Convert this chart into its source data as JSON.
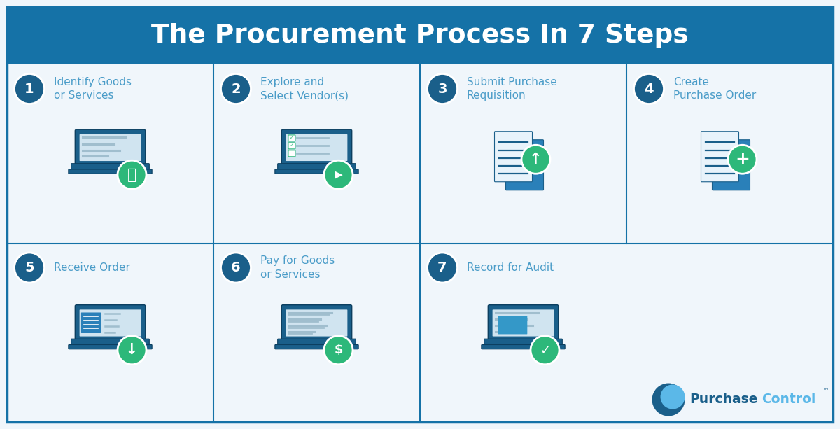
{
  "title": "The Procurement Process In 7 Steps",
  "title_bg_color": "#1572a7",
  "title_text_color": "#ffffff",
  "bg_color": "#f0f6fb",
  "border_color": "#1572a7",
  "step_circle_color": "#1a5f8a",
  "step_text_color": "#4a9cc8",
  "green_color": "#2db87a",
  "blue_dark": "#1a5f8a",
  "blue_mid": "#2a80b9",
  "blue_light": "#5bb8e8",
  "screen_bg": "#d0e4f0",
  "screen_line": "#a0bece",
  "steps": [
    {
      "num": "1",
      "label": "Identify Goods\nor Services",
      "row": 0,
      "col": 0,
      "icon": "laptop_search"
    },
    {
      "num": "2",
      "label": "Explore and\nSelect Vendor(s)",
      "row": 0,
      "col": 1,
      "icon": "laptop_cursor"
    },
    {
      "num": "3",
      "label": "Submit Purchase\nRequisition",
      "row": 0,
      "col": 2,
      "icon": "doc_upload"
    },
    {
      "num": "4",
      "label": "Create\nPurchase Order",
      "row": 0,
      "col": 3,
      "icon": "doc_plus"
    },
    {
      "num": "5",
      "label": "Receive Order",
      "row": 1,
      "col": 0,
      "icon": "laptop_download"
    },
    {
      "num": "6",
      "label": "Pay for Goods\nor Services",
      "row": 1,
      "col": 1,
      "icon": "laptop_dollar"
    },
    {
      "num": "7",
      "label": "Record for Audit",
      "row": 1,
      "col": 2,
      "icon": "laptop_check"
    }
  ],
  "logo_text_purchase": "Purchase",
  "logo_text_control": "Control",
  "logo_tm": "™"
}
